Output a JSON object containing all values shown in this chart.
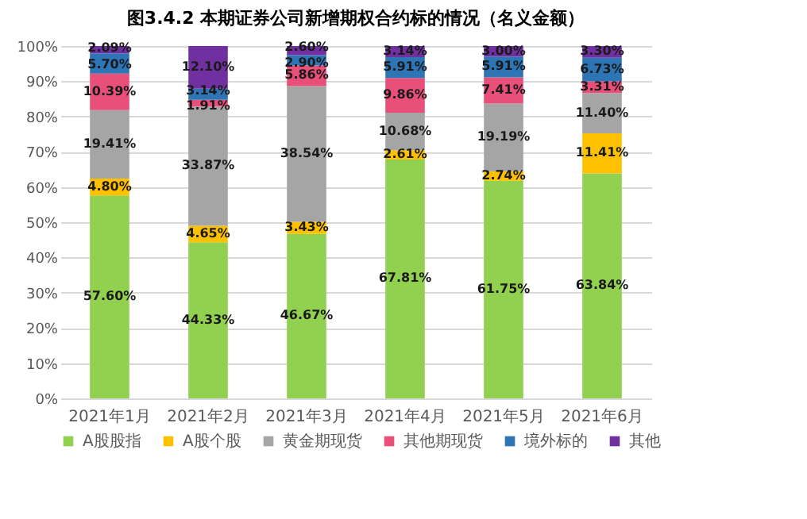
{
  "chart_data": {
    "type": "bar",
    "title": "图3.4.2 本期证券公司新增期权合约标的情况（名义金额）",
    "stacked": true,
    "categories": [
      "2021年1月",
      "2021年2月",
      "2021年3月",
      "2021年4月",
      "2021年5月",
      "2021年6月"
    ],
    "series": [
      {
        "name": "A股股指",
        "color": "#92d050",
        "values": [
          57.6,
          44.33,
          46.67,
          67.81,
          61.75,
          63.84
        ],
        "value_labels": [
          "57.60%",
          "44.33%",
          "46.67%",
          "67.81%",
          "61.75%",
          "63.84%"
        ]
      },
      {
        "name": "A股个股",
        "color": "#ffc000",
        "values": [
          4.8,
          4.65,
          3.43,
          2.61,
          2.74,
          11.41
        ],
        "value_labels": [
          "4.80%",
          "4.65%",
          "3.43%",
          "2.61%",
          "2.74%",
          "11.41%"
        ]
      },
      {
        "name": "黄金期现货",
        "color": "#a5a5a5",
        "values": [
          19.41,
          33.87,
          38.54,
          10.68,
          19.19,
          11.4
        ],
        "value_labels": [
          "19.41%",
          "33.87%",
          "38.54%",
          "10.68%",
          "19.19%",
          "11.40%"
        ]
      },
      {
        "name": "其他期现货",
        "color": "#e8507a",
        "values": [
          10.39,
          1.91,
          5.86,
          9.86,
          7.41,
          3.31
        ],
        "value_labels": [
          "10.39%",
          "1.91%",
          "5.86%",
          "9.86%",
          "7.41%",
          "3.31%"
        ]
      },
      {
        "name": "境外标的",
        "color": "#2e75b6",
        "values": [
          5.7,
          3.14,
          2.9,
          5.91,
          5.91,
          6.73
        ],
        "value_labels": [
          "5.70%",
          "3.14%",
          "2.90%",
          "5.91%",
          "5.91%",
          "6.73%"
        ]
      },
      {
        "name": "其他",
        "color": "#7030a0",
        "values": [
          2.09,
          12.1,
          2.6,
          3.14,
          3.0,
          3.3
        ],
        "value_labels": [
          "2.09%",
          "12.10%",
          "2.60%",
          "3.14%",
          "3.00%",
          "3.30%"
        ]
      }
    ],
    "ylim": [
      0,
      100
    ],
    "yticks": [
      {
        "value": 0,
        "label": "0%"
      },
      {
        "value": 10,
        "label": "10%"
      },
      {
        "value": 20,
        "label": "20%"
      },
      {
        "value": 30,
        "label": "30%"
      },
      {
        "value": 40,
        "label": "40%"
      },
      {
        "value": 50,
        "label": "50%"
      },
      {
        "value": 60,
        "label": "60%"
      },
      {
        "value": 70,
        "label": "70%"
      },
      {
        "value": 80,
        "label": "80%"
      },
      {
        "value": 90,
        "label": "90%"
      },
      {
        "value": 100,
        "label": "100%"
      }
    ],
    "grid": "y",
    "legend": "bottom"
  }
}
